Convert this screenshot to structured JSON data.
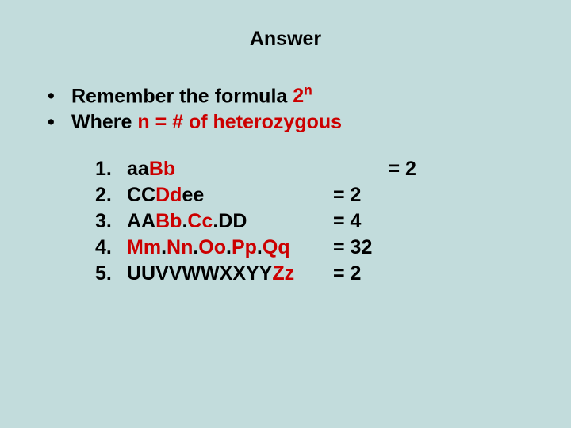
{
  "background_color": "#c2dcdc",
  "text_color": "#000000",
  "highlight_color": "#cc0000",
  "font_family": "Arial, sans-serif",
  "title_fontsize": 25,
  "body_fontsize": 25,
  "font_weight": "bold",
  "title": "Answer",
  "bullets": [
    {
      "pre": "Remember the formula ",
      "hi_base": "2",
      "hi_sup": "n"
    },
    {
      "pre": "Where ",
      "hi": "n = # of heterozygous"
    }
  ],
  "items": [
    {
      "num": "1.",
      "parts": [
        {
          "t": "aa",
          "r": false
        },
        {
          "t": "Bb",
          "r": true
        }
      ],
      "eq_prefix": "          ",
      "eq": "= 2"
    },
    {
      "num": "2.",
      "parts": [
        {
          "t": "CC",
          "r": false
        },
        {
          "t": "Dd",
          "r": true
        },
        {
          "t": "ee",
          "r": false
        }
      ],
      "eq_prefix": "",
      "eq": "= 2"
    },
    {
      "num": "3.",
      "parts": [
        {
          "t": "AA",
          "r": false
        },
        {
          "t": "Bb",
          "r": true
        },
        {
          "t": ".",
          "r": false
        },
        {
          "t": "Cc",
          "r": true
        },
        {
          "t": ".DD",
          "r": false
        }
      ],
      "eq_prefix": "",
      "eq": "= 4"
    },
    {
      "num": "4.",
      "parts": [
        {
          "t": "Mm",
          "r": true
        },
        {
          "t": ".",
          "r": false
        },
        {
          "t": "Nn",
          "r": true
        },
        {
          "t": ".",
          "r": false
        },
        {
          "t": "Oo",
          "r": true
        },
        {
          "t": ".",
          "r": false
        },
        {
          "t": "Pp",
          "r": true
        },
        {
          "t": ".",
          "r": false
        },
        {
          "t": "Qq",
          "r": true
        }
      ],
      "eq_prefix": "",
      "eq": "= 32"
    },
    {
      "num": "5.",
      "parts": [
        {
          "t": "UUVVWWXXYY",
          "r": false
        },
        {
          "t": "Zz",
          "r": true
        }
      ],
      "eq_prefix": "",
      "eq": "= 2"
    }
  ]
}
